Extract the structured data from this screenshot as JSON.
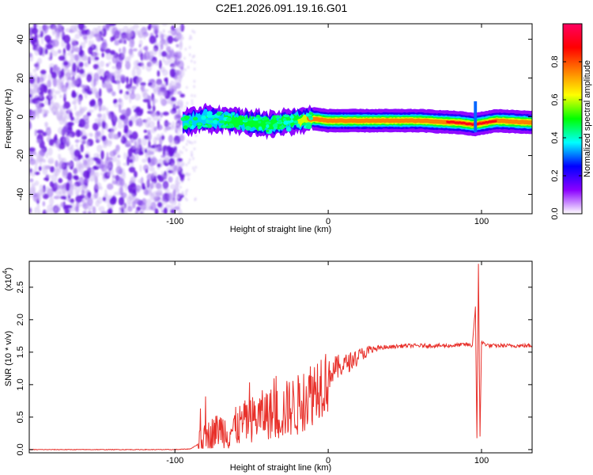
{
  "chart_data": [
    {
      "type": "heatmap",
      "title": "C2E1.2026.091.19.16.G01",
      "xlabel": "Height of straight line (km)",
      "ylabel": "Frequency (Hz)",
      "xlim": [
        -195,
        133
      ],
      "ylim": [
        -50,
        48
      ],
      "xticks": [
        -100,
        0,
        100
      ],
      "yticks": [
        -40,
        -20,
        0,
        20,
        40
      ],
      "colorbar": {
        "label": "Normalized spectral amplitude",
        "range": [
          0,
          1
        ],
        "ticks": [
          0.0,
          0.2,
          0.4,
          0.6,
          0.8
        ],
        "tick_labels": [
          "0.0",
          "0.2",
          "0.4",
          "0.6",
          "0.8"
        ],
        "colors": [
          "#ffffff",
          "#8a00ff",
          "#0000ff",
          "#00ffff",
          "#00ff00",
          "#ffff00",
          "#ff8000",
          "#ff0000",
          "#ff0060"
        ]
      },
      "noise_region": {
        "x_from": -195,
        "x_to": -95,
        "freq_range": [
          -50,
          48
        ],
        "typical_amplitude": 0.1
      },
      "signal_trace": {
        "x": [
          -95,
          -80,
          -60,
          -40,
          -20,
          -10,
          0,
          30,
          60,
          85,
          95,
          110,
          133
        ],
        "center_freq": [
          -3,
          -1,
          -2,
          -4,
          -2,
          -1,
          -2,
          -2,
          -2,
          -3,
          -4,
          -2,
          -3
        ],
        "peak_amplitude": [
          0.35,
          0.45,
          0.5,
          0.55,
          0.6,
          0.85,
          0.9,
          0.85,
          0.8,
          0.95,
          0.95,
          0.9,
          0.8
        ]
      }
    },
    {
      "type": "line",
      "xlabel": "Height of straight line (km)",
      "ylabel": "SNR (10 * v/v)",
      "scale_label": "(x10",
      "scale_exponent": "4",
      "xlim": [
        -195,
        133
      ],
      "ylim": [
        -0.05,
        2.9
      ],
      "xticks": [
        -100,
        0,
        100
      ],
      "yticks": [
        0.0,
        0.5,
        1.0,
        1.5,
        2.0,
        2.5
      ],
      "ytick_labels": [
        "0.0",
        "0.5",
        "1.0",
        "1.5",
        "2.0",
        "2.5"
      ],
      "series": [
        {
          "name": "SNR",
          "color": "#e8302a",
          "x": [
            -195,
            -150,
            -100,
            -90,
            -85,
            -80,
            -75,
            -70,
            -65,
            -60,
            -55,
            -50,
            -45,
            -40,
            -35,
            -30,
            -25,
            -20,
            -15,
            -10,
            -5,
            0,
            5,
            10,
            20,
            30,
            40,
            50,
            60,
            70,
            80,
            90,
            94,
            96,
            97,
            98,
            99,
            100,
            105,
            110,
            120,
            133
          ],
          "y": [
            0.0,
            0.0,
            0.0,
            0.01,
            0.08,
            0.2,
            0.3,
            0.35,
            0.3,
            0.38,
            0.45,
            0.5,
            0.55,
            0.6,
            0.58,
            0.62,
            0.7,
            0.72,
            0.85,
            0.95,
            1.1,
            1.15,
            1.25,
            1.3,
            1.45,
            1.55,
            1.58,
            1.6,
            1.6,
            1.6,
            1.6,
            1.62,
            1.6,
            2.2,
            0.15,
            2.85,
            0.2,
            1.65,
            1.6,
            1.6,
            1.6,
            1.6
          ]
        }
      ]
    }
  ]
}
